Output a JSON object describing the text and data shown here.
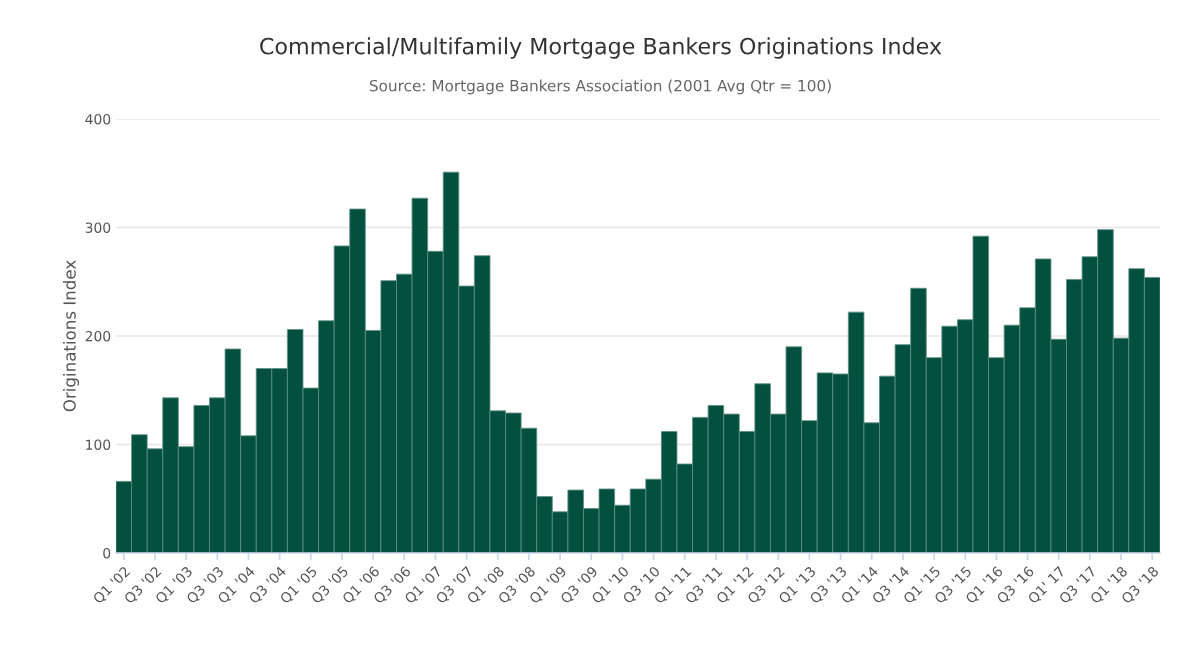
{
  "chart_data": {
    "type": "bar",
    "title": "Commercial/Multifamily Mortgage Bankers Originations Index",
    "subtitle": "Source: Mortgage Bankers Association (2001 Avg Qtr = 100)",
    "ylabel": "Originations Index",
    "categories": [
      "Q1 '02",
      null,
      "Q3 '02",
      null,
      "Q1 '03",
      null,
      "Q3 '03",
      null,
      "Q1 '04",
      null,
      "Q3 '04",
      null,
      "Q1 '05",
      null,
      "Q3 '05",
      null,
      "Q1 '06",
      null,
      "Q3 '06",
      null,
      "Q1 '07",
      null,
      "Q3 '07",
      null,
      "Q1 '08",
      null,
      "Q3 '08",
      null,
      "Q1 '09",
      null,
      "Q3 '09",
      null,
      "Q1 '10",
      null,
      "Q3 '10",
      null,
      "Q1 '11",
      null,
      "Q3 '11",
      null,
      "Q1 '12",
      null,
      "Q3 '12",
      null,
      "Q1 '13",
      null,
      "Q3 '13",
      null,
      "Q1 '14",
      null,
      "Q3 '14",
      null,
      "Q1 '15",
      null,
      "Q3 '15",
      null,
      "Q1 '16",
      null,
      "Q3 '16",
      null,
      "Q1' 17",
      null,
      "Q3 '17",
      null,
      "Q1 '18",
      null,
      "Q3 '18"
    ],
    "values": [
      66,
      109,
      96,
      143,
      98,
      136,
      143,
      188,
      108,
      170,
      170,
      206,
      152,
      214,
      283,
      317,
      205,
      251,
      257,
      327,
      278,
      351,
      246,
      274,
      131,
      129,
      115,
      52,
      38,
      58,
      41,
      59,
      44,
      59,
      68,
      112,
      82,
      125,
      136,
      128,
      112,
      156,
      128,
      190,
      122,
      166,
      165,
      222,
      120,
      163,
      192,
      244,
      180,
      209,
      215,
      292,
      180,
      210,
      226,
      271,
      197,
      252,
      273,
      298,
      198,
      262,
      254
    ],
    "color": "#03503f",
    "ylim": [
      0,
      400
    ],
    "yticks": [
      0,
      100,
      200,
      300,
      400
    ],
    "grid": "y",
    "legend": false
  }
}
